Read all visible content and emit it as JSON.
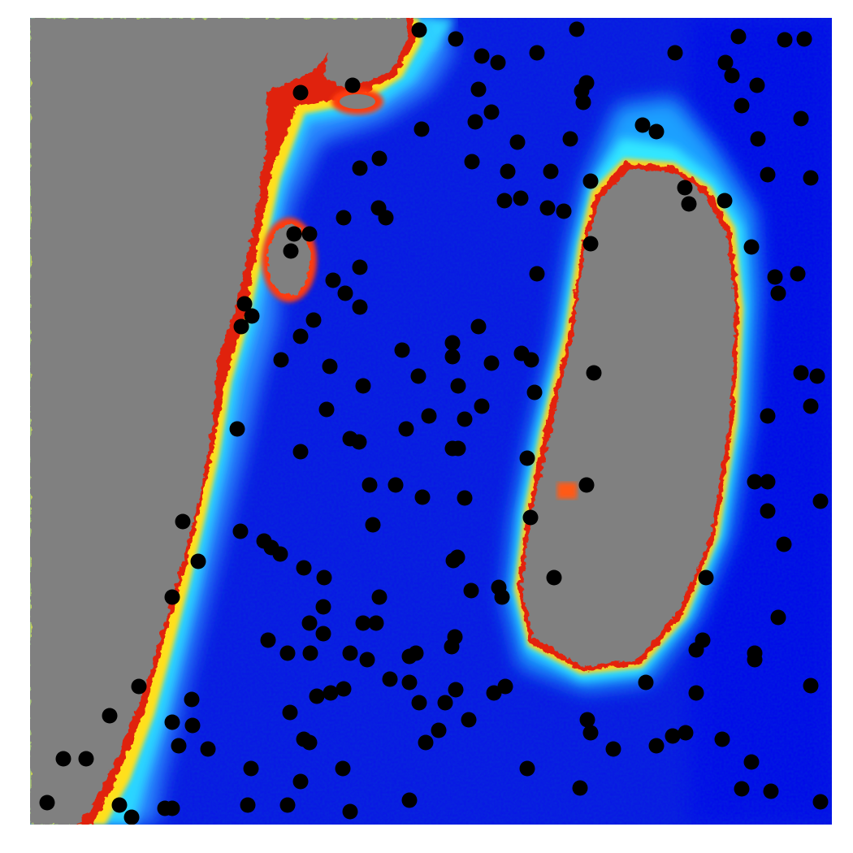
{
  "map": {
    "type": "raster-heatmap-with-points",
    "colormap": "jet",
    "colormap_stops": [
      "#00007f",
      "#0000ff",
      "#007fff",
      "#00ffff",
      "#7fff7f",
      "#ffff00",
      "#ff7f00",
      "#ff0000",
      "#7f0000"
    ],
    "land_color": "#808080",
    "water_base_color": "#0000ff",
    "marker_color": "#000000",
    "regions": [
      {
        "name": "west-coast-landmass",
        "kind": "land"
      },
      {
        "name": "central-island",
        "kind": "land"
      },
      {
        "name": "western-inner-bay",
        "kind": "land"
      },
      {
        "name": "north-coast-bay",
        "kind": "land"
      },
      {
        "name": "open-water",
        "kind": "water"
      }
    ],
    "sample_point_count": 200,
    "axes_visible": false,
    "grid": false,
    "legend": "none"
  }
}
